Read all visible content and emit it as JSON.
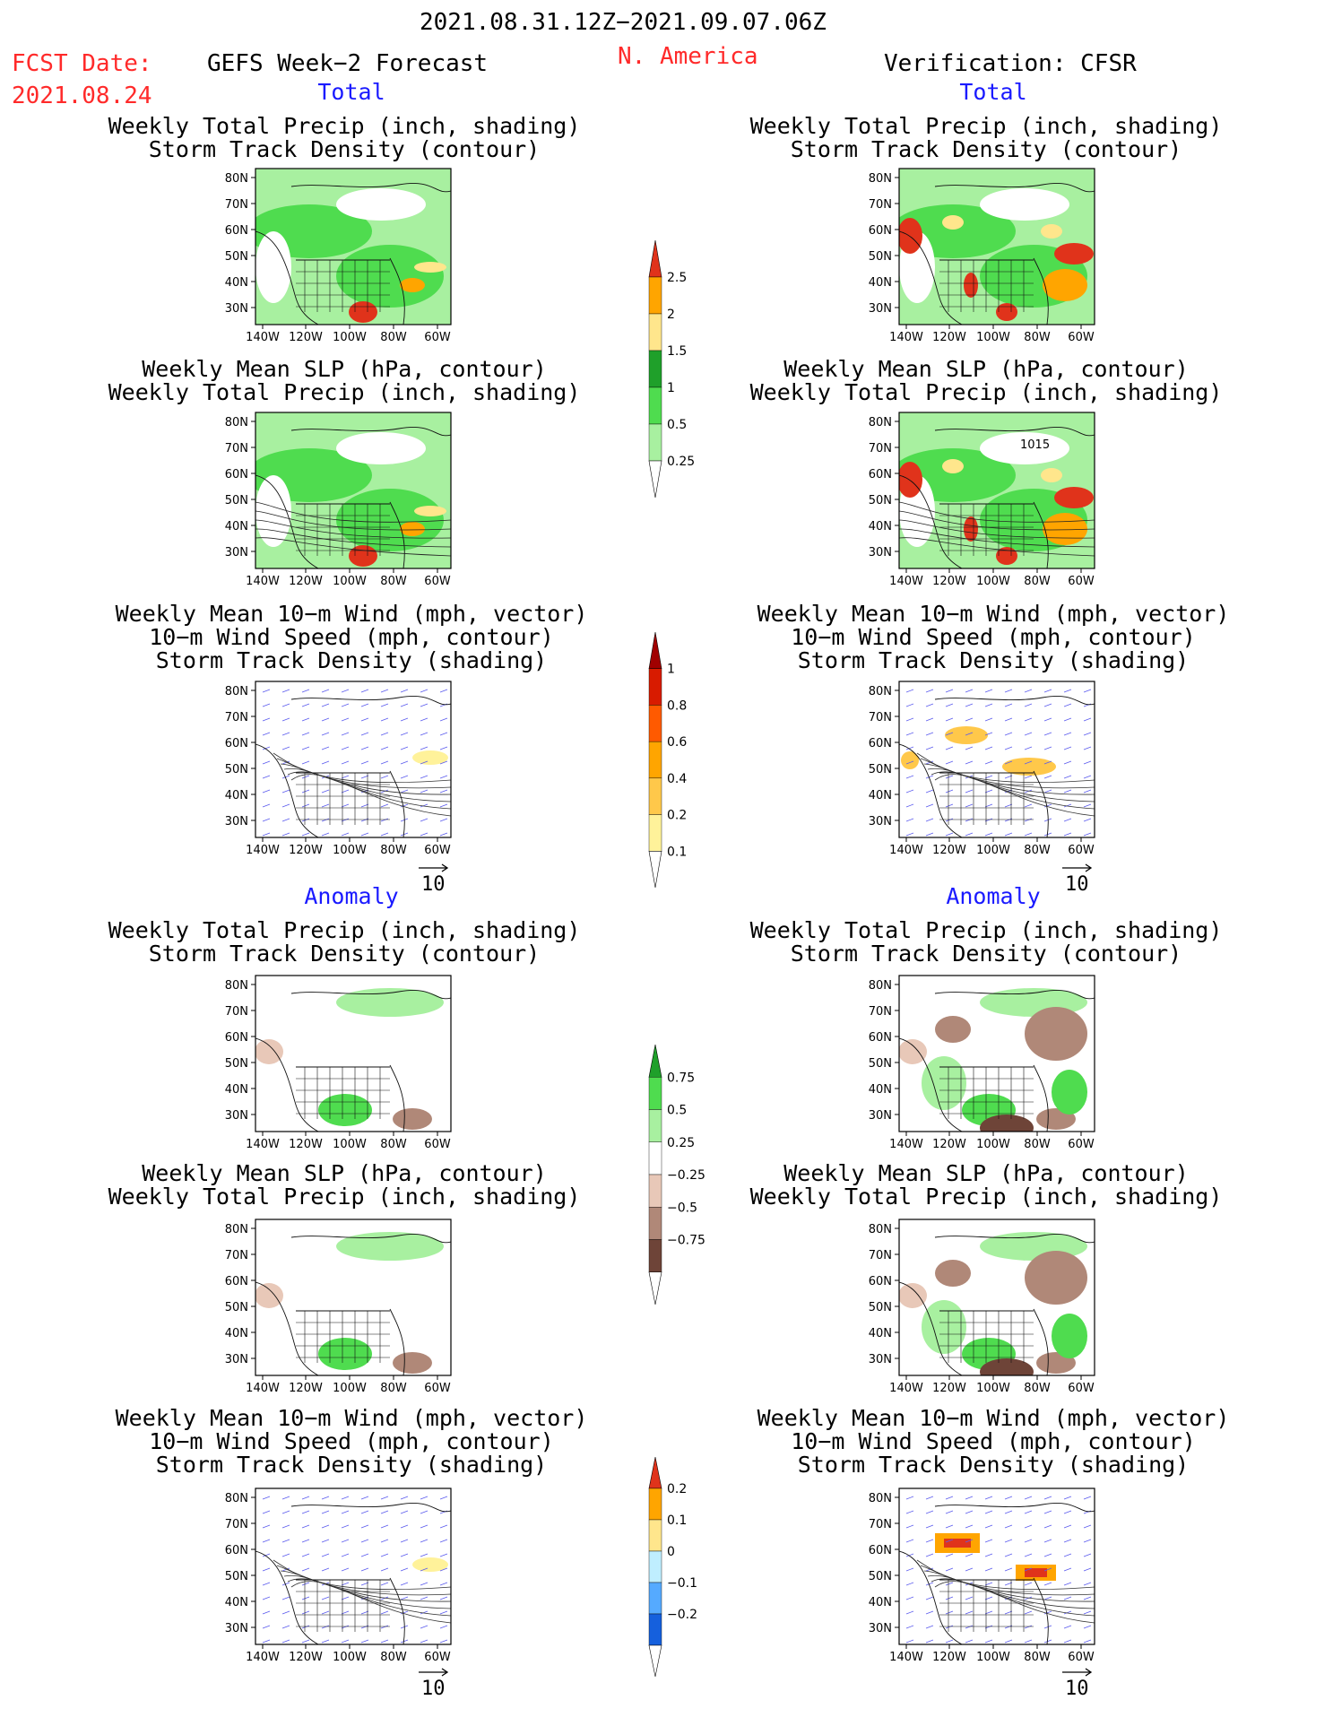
{
  "header": {
    "period": "2021.08.31.12Z−2021.09.07.06Z",
    "fcst_label": "FCST Date:",
    "fcst_date": "2021.08.24",
    "forecast_title": "GEFS Week−2 Forecast",
    "region": "N. America",
    "verification": "Verification: CFSR"
  },
  "sections": {
    "total": "Total",
    "anomaly": "Anomaly"
  },
  "titles": {
    "precip_storm": [
      "Weekly Total Precip (inch, shading)",
      "Storm Track Density (contour)"
    ],
    "slp_precip": [
      "Weekly Mean SLP (hPa, contour)",
      "Weekly Total Precip (inch, shading)"
    ],
    "wind_storm": [
      "Weekly Mean 10−m Wind (mph, vector)",
      "10−m Wind Speed (mph, contour)",
      "Storm Track Density (shading)"
    ]
  },
  "axes": {
    "lat_labels": [
      "80N",
      "70N",
      "60N",
      "50N",
      "40N",
      "30N"
    ],
    "lon_labels": [
      "140W",
      "120W",
      "100W",
      "80W",
      "60W"
    ]
  },
  "vector_scale": "10",
  "slp_label": "1015",
  "colorbars": [
    {
      "id": "total-precip",
      "labels": [
        "2.5",
        "2",
        "1.5",
        "1",
        "0.5",
        "0.25"
      ],
      "colors": [
        "#e0331b",
        "#ffa500",
        "#ffe68c",
        "#1fa02a",
        "#4fdc4f",
        "#a8f0a0"
      ]
    },
    {
      "id": "total-storm",
      "labels": [
        "1",
        "0.8",
        "0.6",
        "0.4",
        "0.2",
        "0.1"
      ],
      "colors": [
        "#a10000",
        "#d81b00",
        "#ff5a00",
        "#ffa500",
        "#ffc84a",
        "#fff29a"
      ]
    },
    {
      "id": "anomaly-precip",
      "labels": [
        "0.75",
        "0.5",
        "0.25",
        "−0.25",
        "−0.5",
        "−0.75"
      ],
      "colors": [
        "#1fa02a",
        "#4fdc4f",
        "#a8f0a0",
        "#ffffff",
        "#e8c8b8",
        "#b08878",
        "#6e4438"
      ]
    },
    {
      "id": "anomaly-storm",
      "labels": [
        "0.2",
        "0.1",
        "0",
        "−0.1",
        "−0.2"
      ],
      "colors": [
        "#e0331b",
        "#ffa500",
        "#ffe68c",
        "#bfeeff",
        "#55aaff",
        "#1560dd"
      ]
    }
  ]
}
